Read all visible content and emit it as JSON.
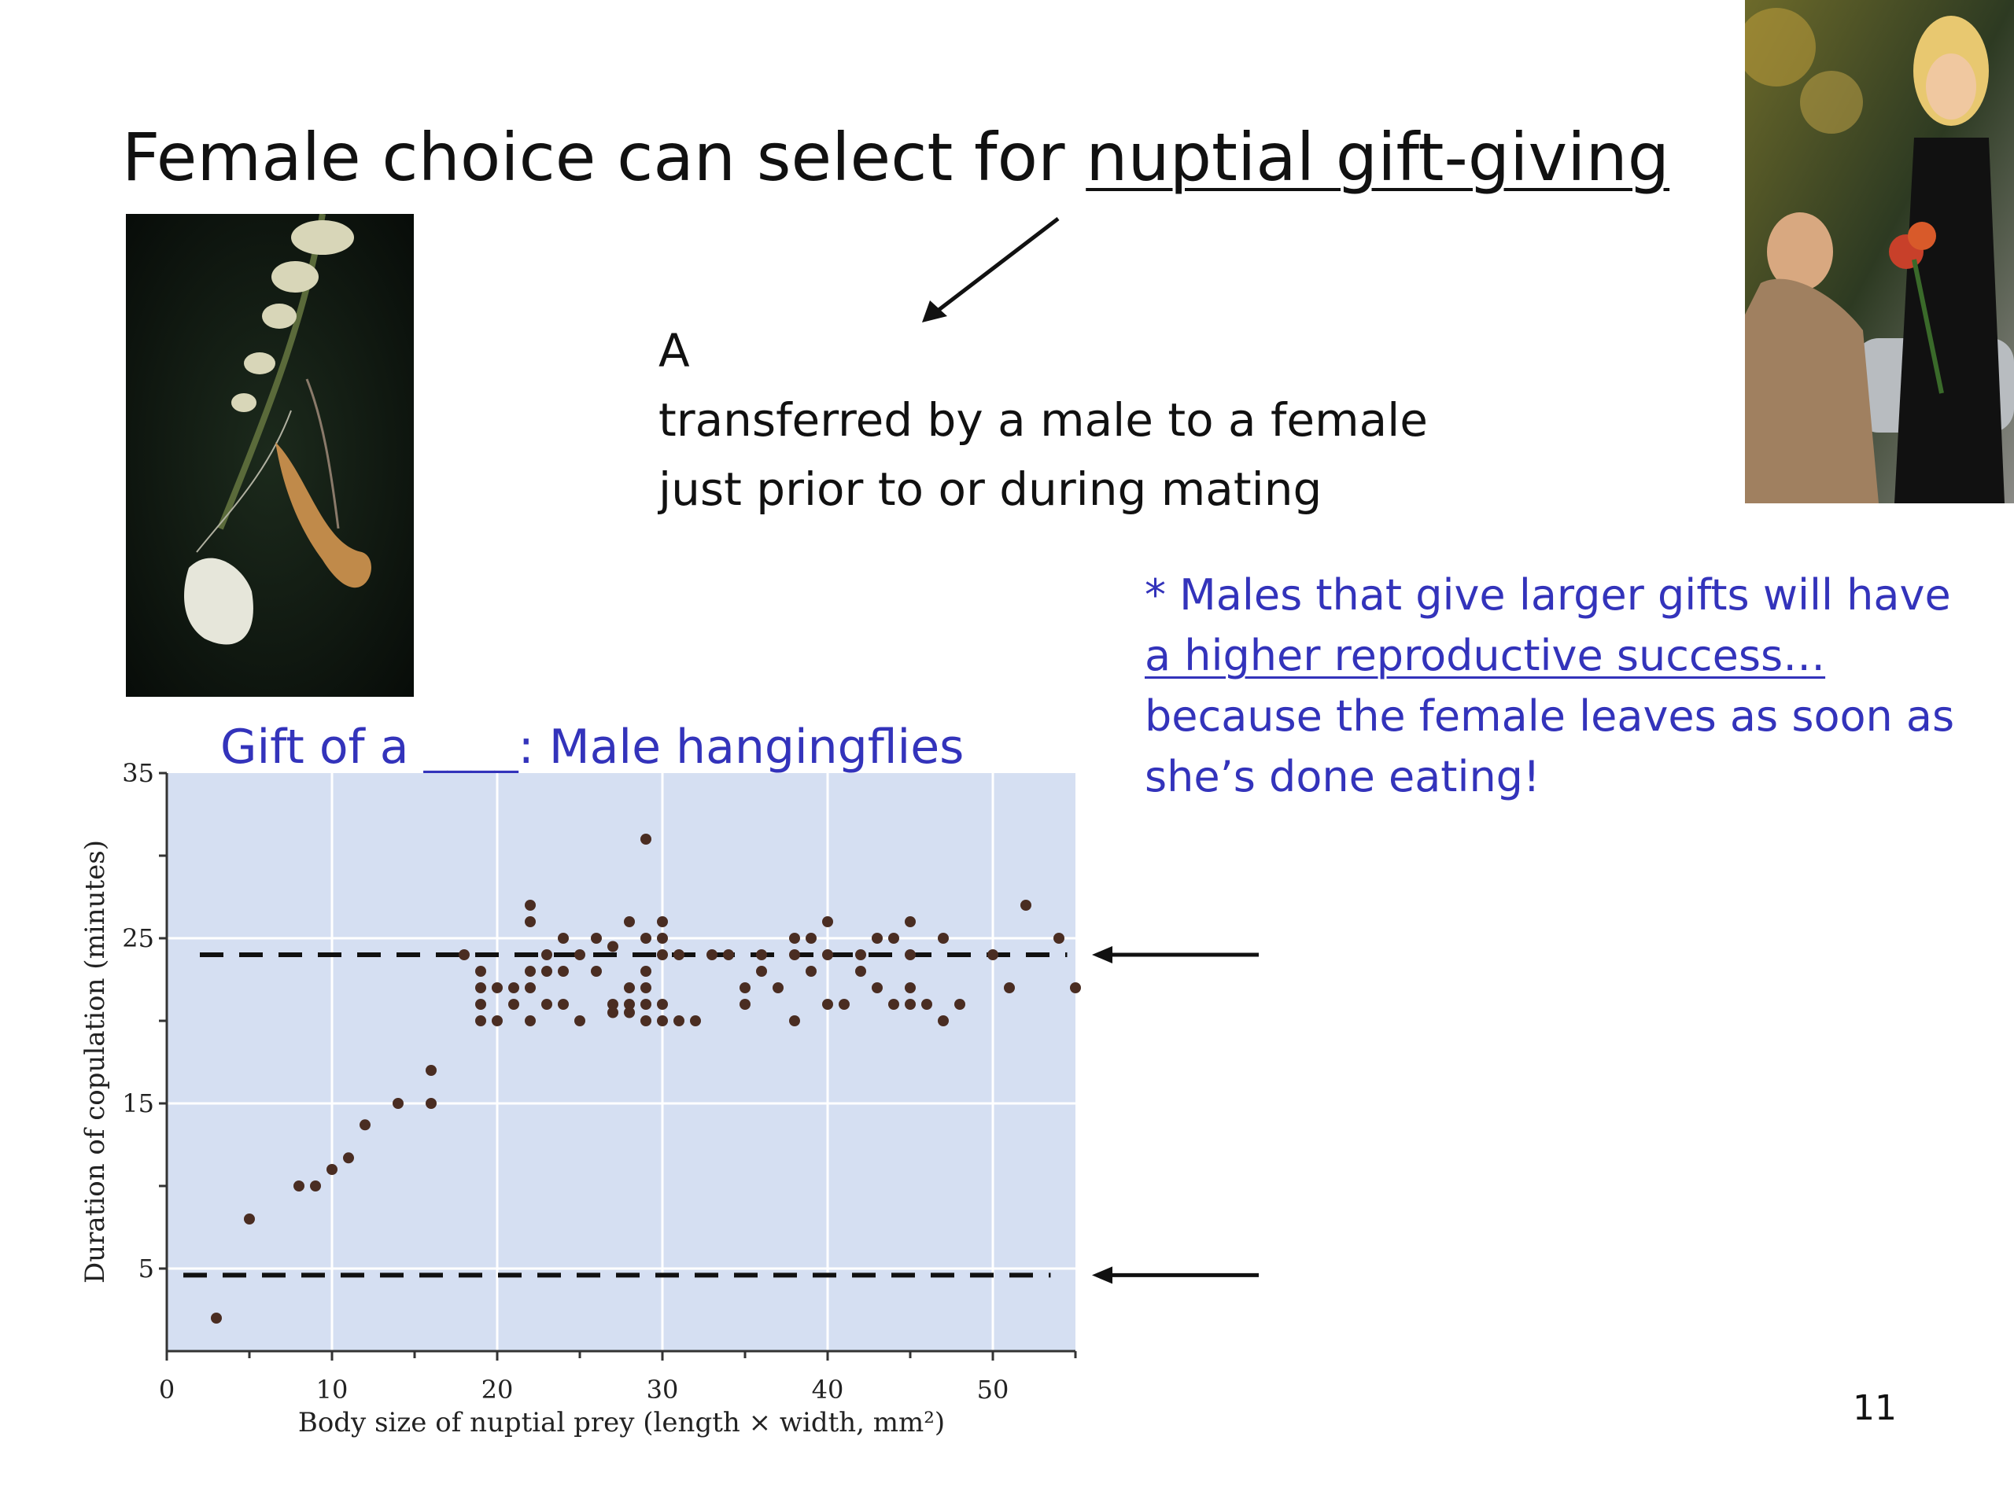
{
  "slide": {
    "title_prefix": "Female choice can select for ",
    "title_term": "nuptial gift-giving",
    "definition_line1": "A",
    "definition_line2": "transferred by a male to a female",
    "definition_line3": "just prior to or during mating",
    "note_line1": "* Males that give larger gifts will have",
    "note_line2": "a higher reproductive success…",
    "note_line3": "because the female leaves as soon as",
    "note_line4": "she’s done eating!",
    "chart_caption": "Gift of a ____:  Male hangingflies",
    "page_number": "11"
  },
  "colors": {
    "note_blue": "#3333bb",
    "plot_bg": "#d5dff2",
    "point": "#4a2d22"
  },
  "chart_data": {
    "type": "scatter",
    "title": "",
    "xlabel": "Body size of nuptial prey (length × width, mm²)",
    "ylabel": "Duration of copulation (minutes)",
    "xlim": [
      0,
      55
    ],
    "ylim": [
      0,
      35
    ],
    "xticks": [
      0,
      10,
      20,
      30,
      40,
      50
    ],
    "yticks": [
      5,
      15,
      25,
      35
    ],
    "grid": true,
    "reference_lines": [
      24,
      4.6
    ],
    "x": [
      3,
      5,
      8,
      9,
      10,
      11,
      12,
      14,
      16,
      16,
      18,
      19,
      19,
      19,
      19,
      20,
      20,
      21,
      21,
      22,
      22,
      22,
      22,
      22,
      23,
      23,
      23,
      24,
      24,
      24,
      25,
      25,
      26,
      26,
      27,
      27,
      27,
      28,
      28,
      28,
      28,
      29,
      29,
      29,
      29,
      29,
      29,
      30,
      30,
      30,
      30,
      30,
      31,
      31,
      32,
      33,
      34,
      35,
      35,
      36,
      36,
      37,
      38,
      38,
      38,
      39,
      39,
      40,
      40,
      40,
      41,
      42,
      42,
      43,
      43,
      44,
      44,
      45,
      45,
      45,
      45,
      46,
      47,
      47,
      48,
      50,
      51,
      52,
      54,
      55
    ],
    "y": [
      2,
      8,
      10,
      10,
      11,
      11.7,
      13.7,
      15,
      15,
      17,
      24,
      23,
      22,
      21,
      20,
      22,
      20,
      22,
      21,
      27,
      26,
      23,
      22,
      20,
      24,
      21,
      23,
      21,
      25,
      23,
      20,
      24,
      25,
      23,
      24.5,
      21,
      20.5,
      26,
      22,
      21,
      20.5,
      31,
      25,
      23,
      22,
      21,
      20,
      26,
      25,
      24,
      21,
      20,
      20,
      24,
      20,
      24,
      24,
      22,
      21,
      23,
      24,
      22,
      20,
      24,
      25,
      23,
      25,
      21,
      26,
      24,
      21,
      23,
      24,
      22,
      25,
      21,
      25,
      21,
      24,
      26,
      22,
      21,
      20,
      25,
      21,
      24,
      22,
      27,
      25,
      22
    ]
  }
}
